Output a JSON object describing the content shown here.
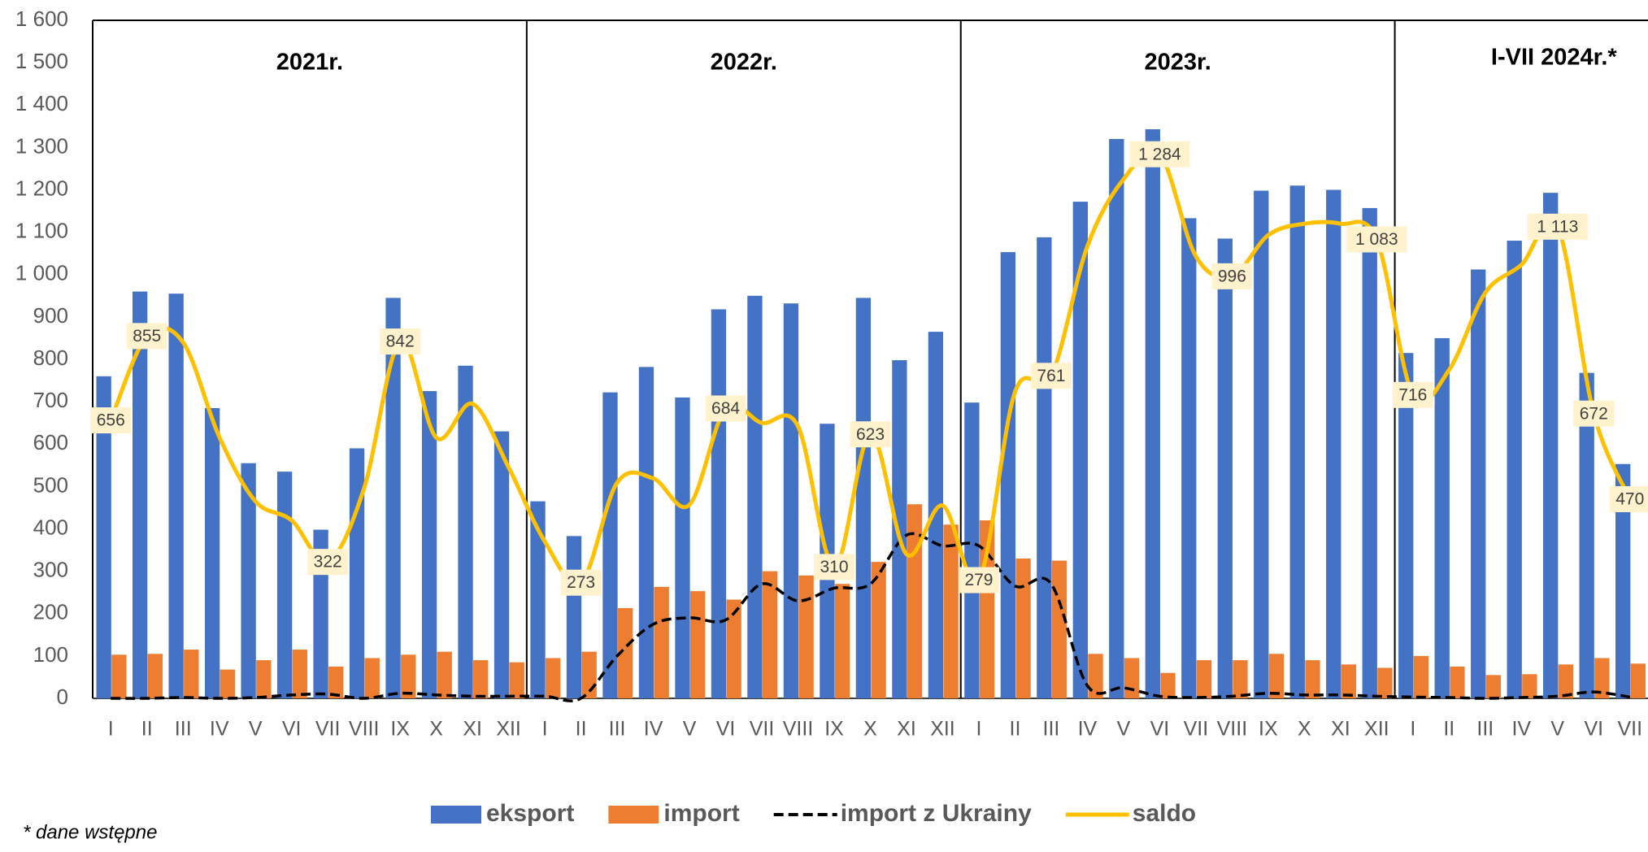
{
  "chart_data": {
    "type": "bar",
    "annotations": [
      "2021r.",
      "2022r.",
      "2023r.",
      "I-VII 2024r.*"
    ],
    "footnote": "* dane wstępne",
    "categories": [
      "I",
      "II",
      "III",
      "IV",
      "V",
      "VI",
      "VII",
      "VIII",
      "IX",
      "X",
      "XI",
      "XII",
      "I",
      "II",
      "III",
      "IV",
      "V",
      "VI",
      "VII",
      "VIII",
      "IX",
      "X",
      "XI",
      "XII",
      "I",
      "II",
      "III",
      "IV",
      "V",
      "VI",
      "VII",
      "VIII",
      "IX",
      "X",
      "XI",
      "XII",
      "I",
      "II",
      "III",
      "IV",
      "V",
      "VI",
      "VII"
    ],
    "series": [
      {
        "name": "eksport",
        "type": "bar",
        "color": "#4472c4",
        "values": [
          760,
          960,
          955,
          685,
          555,
          535,
          398,
          590,
          945,
          725,
          785,
          630,
          465,
          383,
          722,
          782,
          710,
          918,
          950,
          932,
          648,
          945,
          798,
          865,
          698,
          1053,
          1088,
          1172,
          1320,
          1343,
          1133,
          1085,
          1198,
          1210,
          1200,
          1157,
          815,
          850,
          1012,
          1080,
          1193,
          768,
          553
        ]
      },
      {
        "name": "import",
        "type": "bar",
        "color": "#ed7d31",
        "values": [
          103,
          105,
          115,
          68,
          90,
          115,
          75,
          95,
          103,
          110,
          90,
          85,
          95,
          110,
          213,
          263,
          253,
          233,
          300,
          290,
          270,
          322,
          458,
          410,
          420,
          330,
          325,
          105,
          95,
          60,
          90,
          90,
          105,
          90,
          80,
          72,
          100,
          75,
          55,
          57,
          80,
          95,
          82
        ]
      },
      {
        "name": "import z Ukrainy",
        "type": "line",
        "color": "#000000",
        "dashed": true,
        "values": [
          0,
          0,
          2,
          0,
          2,
          8,
          10,
          0,
          12,
          8,
          5,
          5,
          5,
          0,
          100,
          175,
          190,
          185,
          270,
          230,
          260,
          270,
          385,
          360,
          360,
          265,
          270,
          30,
          25,
          5,
          2,
          5,
          12,
          8,
          8,
          5,
          3,
          2,
          0,
          2,
          5,
          15,
          3
        ]
      },
      {
        "name": "saldo",
        "type": "line",
        "color": "#ffc000",
        "values": [
          656,
          855,
          840,
          617,
          465,
          420,
          322,
          495,
          842,
          615,
          695,
          545,
          370,
          273,
          509,
          519,
          457,
          684,
          650,
          642,
          310,
          623,
          340,
          455,
          279,
          723,
          761,
          1067,
          1225,
          1284,
          1043,
          996,
          1093,
          1120,
          1120,
          1083,
          716,
          775,
          957,
          1023,
          1113,
          672,
          470
        ],
        "value_labels": [
          "656",
          "855",
          null,
          null,
          null,
          null,
          "322",
          null,
          "842",
          null,
          null,
          null,
          null,
          "273",
          null,
          null,
          null,
          "684",
          null,
          null,
          "310",
          "623",
          null,
          null,
          "279",
          null,
          "761",
          null,
          null,
          "1 284",
          null,
          "996",
          null,
          null,
          null,
          "1 083",
          "716",
          null,
          null,
          null,
          "1 113",
          "672",
          "470"
        ]
      }
    ],
    "ylim": [
      0,
      1600
    ],
    "yticks": [
      0,
      100,
      200,
      300,
      400,
      500,
      600,
      700,
      800,
      900,
      {
        "value": 1000,
        "label": "1 000"
      },
      {
        "value": 1100,
        "label": "1 100"
      },
      {
        "value": 1200,
        "label": "1 200"
      },
      {
        "value": 1300,
        "label": "1 300"
      },
      {
        "value": 1400,
        "label": "1 400"
      },
      {
        "value": 1500,
        "label": "1 500"
      },
      {
        "value": 1600,
        "label": "1 600"
      }
    ],
    "smooth": true,
    "legend": "bottom"
  }
}
